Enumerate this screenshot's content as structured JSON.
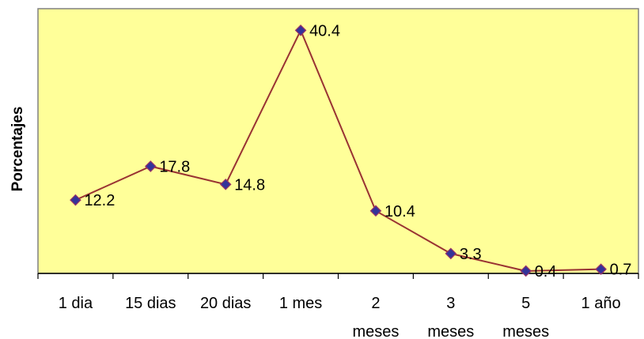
{
  "chart_data": {
    "type": "line",
    "title": "",
    "xlabel": "",
    "ylabel": "Porcentajes",
    "categories": [
      [
        "1 dia"
      ],
      [
        "15 dias"
      ],
      [
        "20 dias"
      ],
      [
        "1 mes"
      ],
      [
        "2",
        "meses"
      ],
      [
        "3",
        "meses"
      ],
      [
        "5",
        "meses"
      ],
      [
        "1 año"
      ]
    ],
    "series": [
      {
        "values": [
          12.2,
          17.8,
          14.8,
          40.4,
          10.4,
          3.3,
          0.4,
          0.7
        ],
        "data_labels": [
          "12.2",
          "17.8",
          "14.8",
          "40.4",
          "10.4",
          "3.3",
          "0.4",
          "0.7"
        ]
      }
    ],
    "ylim": [
      0,
      44
    ],
    "grid": false,
    "legend": "none",
    "colors": {
      "plot_background": "#FFFF99",
      "plot_border": "#808080",
      "line": "#993333",
      "marker_fill": "#333399",
      "marker_edge": "#993366",
      "axis": "#000000"
    }
  }
}
